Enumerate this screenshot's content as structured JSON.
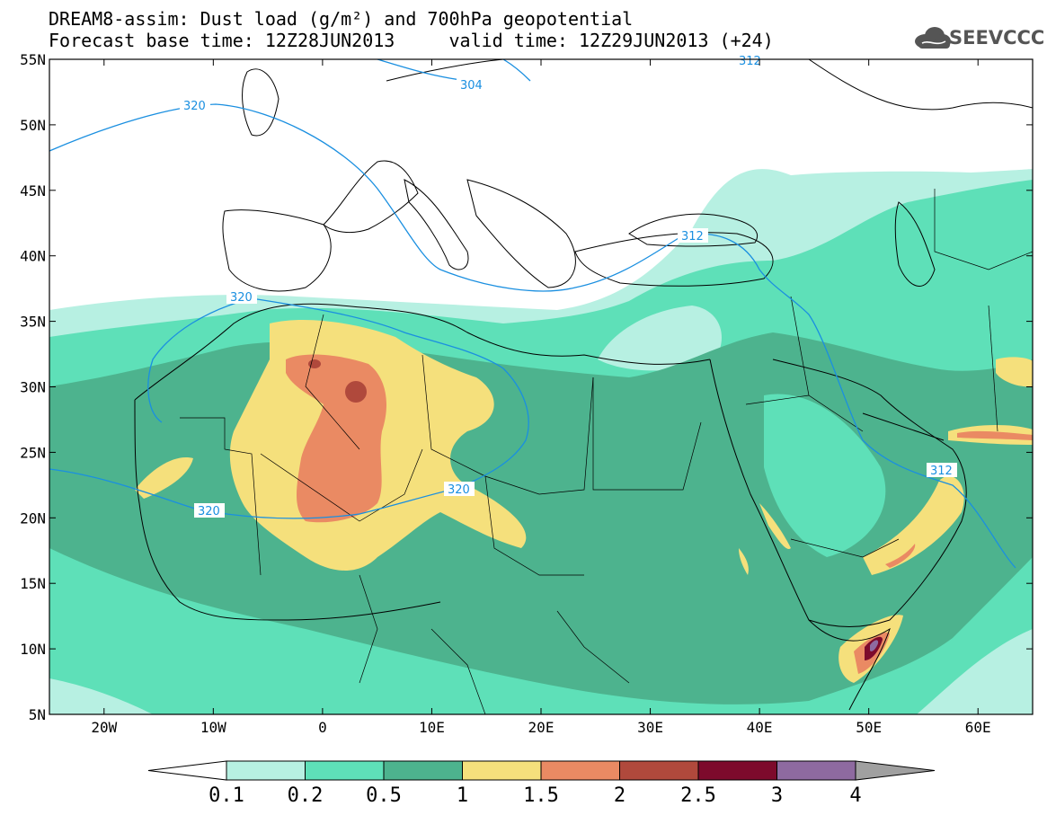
{
  "title": {
    "line1": "DREAM8-assim: Dust load (g/m²) and 700hPa geopotential",
    "line2": "Forecast base time: 12Z28JUN2013     valid time: 12Z29JUN2013 (+24)"
  },
  "logo": {
    "text": "SEEVCCC",
    "icon": "cloud-icon"
  },
  "map": {
    "lat_labels": [
      "55N",
      "50N",
      "45N",
      "40N",
      "35N",
      "30N",
      "25N",
      "20N",
      "15N",
      "10N",
      "5N"
    ],
    "lon_labels": [
      "20W",
      "10W",
      "0",
      "10E",
      "20E",
      "30E",
      "40E",
      "50E",
      "60E"
    ],
    "contour_labels": [
      "320",
      "320",
      "320",
      "320",
      "304",
      "312",
      "312",
      "312"
    ],
    "contour_color": "#1a8fe0"
  },
  "colorbar": {
    "labels": [
      "0.1",
      "0.2",
      "0.5",
      "1",
      "1.5",
      "2",
      "2.5",
      "3",
      "4"
    ],
    "colors": [
      "#b7f0e2",
      "#5ee0b8",
      "#4db38e",
      "#f5e07c",
      "#ea8a63",
      "#b0493c",
      "#7d0a2c",
      "#8e6aa0"
    ],
    "under_color": "#ffffff",
    "over_color": "#a0a0a0"
  }
}
